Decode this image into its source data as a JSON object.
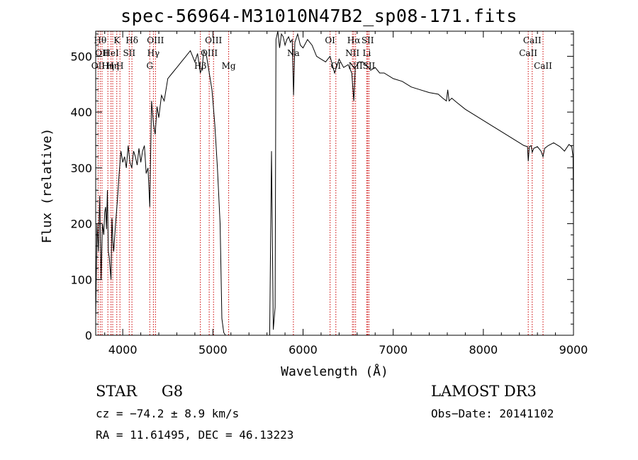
{
  "chart_data": {
    "type": "line",
    "title": "spec-56964-M31010N47B2_sp08-171.fits",
    "xlabel": "Wavelength (Å)",
    "ylabel": "Flux (relative)",
    "xlim": [
      3700,
      9000
    ],
    "ylim": [
      0,
      545
    ],
    "xticks": [
      4000,
      5000,
      6000,
      7000,
      8000,
      9000
    ],
    "yticks": [
      0,
      100,
      200,
      300,
      400,
      500
    ],
    "series": [
      {
        "name": "spectrum",
        "x": [
          3700,
          3715,
          3730,
          3745,
          3760,
          3775,
          3790,
          3800,
          3810,
          3820,
          3830,
          3840,
          3850,
          3860,
          3870,
          3880,
          3890,
          3900,
          3920,
          3940,
          3960,
          3980,
          4000,
          4020,
          4040,
          4060,
          4080,
          4100,
          4120,
          4140,
          4160,
          4180,
          4200,
          4220,
          4240,
          4260,
          4280,
          4300,
          4320,
          4340,
          4360,
          4380,
          4400,
          4430,
          4460,
          4500,
          4550,
          4600,
          4650,
          4700,
          4750,
          4800,
          4830,
          4861,
          4880,
          4900,
          4930,
          4960,
          4990,
          5020,
          5050,
          5080,
          5100,
          5120,
          5140,
          5150,
          5200,
          5300,
          5400,
          5500,
          5600,
          5630,
          5650,
          5670,
          5690,
          5700,
          5720,
          5740,
          5760,
          5780,
          5800,
          5820,
          5840,
          5860,
          5880,
          5895,
          5910,
          5940,
          5970,
          6000,
          6050,
          6100,
          6150,
          6200,
          6250,
          6300,
          6350,
          6400,
          6450,
          6500,
          6540,
          6563,
          6580,
          6620,
          6660,
          6700,
          6750,
          6800,
          6850,
          6900,
          7000,
          7100,
          7200,
          7300,
          7400,
          7500,
          7550,
          7590,
          7605,
          7620,
          7650,
          7700,
          7800,
          7900,
          8000,
          8100,
          8200,
          8300,
          8400,
          8450,
          8490,
          8498,
          8510,
          8530,
          8542,
          8560,
          8600,
          8640,
          8662,
          8680,
          8720,
          8780,
          8850,
          8900,
          8950,
          8980,
          8995,
          9000
        ],
        "y": [
          30,
          200,
          150,
          250,
          100,
          200,
          180,
          220,
          230,
          190,
          260,
          150,
          140,
          120,
          100,
          210,
          170,
          150,
          200,
          240,
          290,
          330,
          310,
          320,
          300,
          340,
          310,
          300,
          330,
          320,
          305,
          335,
          310,
          330,
          340,
          290,
          300,
          230,
          420,
          380,
          360,
          410,
          390,
          430,
          420,
          460,
          470,
          480,
          490,
          500,
          510,
          490,
          505,
          470,
          480,
          510,
          500,
          470,
          440,
          380,
          300,
          200,
          30,
          5,
          0,
          0,
          0,
          0,
          0,
          0,
          0,
          0,
          330,
          10,
          50,
          530,
          545,
          515,
          540,
          535,
          520,
          530,
          535,
          525,
          530,
          430,
          525,
          540,
          520,
          515,
          530,
          520,
          500,
          495,
          490,
          500,
          470,
          495,
          480,
          485,
          470,
          420,
          480,
          490,
          490,
          485,
          475,
          480,
          470,
          470,
          460,
          455,
          445,
          440,
          435,
          432,
          425,
          420,
          440,
          420,
          425,
          418,
          405,
          395,
          385,
          375,
          365,
          355,
          345,
          340,
          338,
          312,
          338,
          340,
          328,
          335,
          338,
          330,
          320,
          335,
          340,
          345,
          338,
          330,
          342,
          338,
          320,
          190
        ]
      }
    ],
    "lines": [
      {
        "wl": 3727,
        "label": "OII",
        "row": 2
      },
      {
        "wl": 3750,
        "label": "Hθ",
        "row": 0
      },
      {
        "wl": 3770,
        "label": "OII",
        "row": 1
      },
      {
        "wl": 3835,
        "label": "Hη",
        "row": 2
      },
      {
        "wl": 3870,
        "label": "HeI",
        "row": 1
      },
      {
        "wl": 3889,
        "label": "Hη",
        "row": 2
      },
      {
        "wl": 3934,
        "label": "K",
        "row": 0
      },
      {
        "wl": 3969,
        "label": "H",
        "row": 2
      },
      {
        "wl": 4072,
        "label": "SII",
        "row": 1
      },
      {
        "wl": 4102,
        "label": "Hδ",
        "row": 0
      },
      {
        "wl": 4300,
        "label": "G",
        "row": 2
      },
      {
        "wl": 4340,
        "label": "Hγ",
        "row": 1
      },
      {
        "wl": 4363,
        "label": "OIII",
        "row": 0
      },
      {
        "wl": 4861,
        "label": "Hβ",
        "row": 2
      },
      {
        "wl": 4959,
        "label": "OIII",
        "row": 1
      },
      {
        "wl": 5007,
        "label": "OIII",
        "row": 0
      },
      {
        "wl": 5175,
        "label": "Mg",
        "row": 2
      },
      {
        "wl": 5893,
        "label": "Na",
        "row": 1
      },
      {
        "wl": 6300,
        "label": "OI",
        "row": 0
      },
      {
        "wl": 6364,
        "label": "OI",
        "row": 2
      },
      {
        "wl": 6548,
        "label": "NII",
        "row": 1
      },
      {
        "wl": 6563,
        "label": "Hα",
        "row": 0
      },
      {
        "wl": 6583,
        "label": "NII",
        "row": 2
      },
      {
        "wl": 6707,
        "label": "Li",
        "row": 1
      },
      {
        "wl": 6717,
        "label": "SII",
        "row": 0
      },
      {
        "wl": 6731,
        "label": "SII",
        "row": 2
      },
      {
        "wl": 8498,
        "label": "CaII",
        "row": 1
      },
      {
        "wl": 8542,
        "label": "CaII",
        "row": 0
      },
      {
        "wl": 8662,
        "label": "CaII",
        "row": 2
      }
    ],
    "line_color": "#000000",
    "marker_color": "#cc0000"
  },
  "info": {
    "class": "STAR",
    "subclass": "G8",
    "cz": "cz = −74.2 ± 8.9 km/s",
    "coords": "RA =  11.61495, DEC =  46.13223",
    "survey": "LAMOST DR3",
    "obsdate": "Obs−Date: 20141102"
  }
}
